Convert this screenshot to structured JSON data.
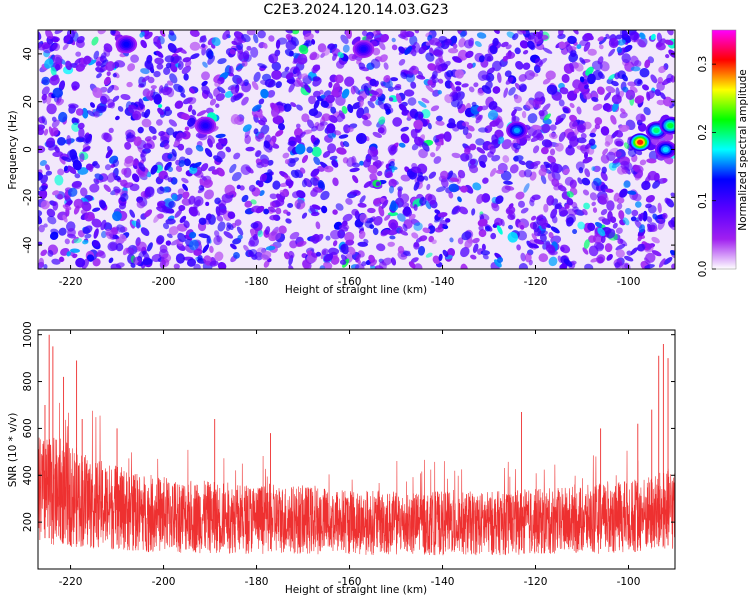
{
  "title": "C2E3.2024.120.14.03.G23",
  "chart_data": [
    {
      "type": "heatmap",
      "xlabel": "Height of straight line (km)",
      "ylabel": "Frequency (Hz)",
      "xlim": [
        -227,
        -90
      ],
      "ylim": [
        -50,
        50
      ],
      "x_ticks": [
        -220,
        -200,
        -180,
        -160,
        -140,
        -120,
        -100
      ],
      "y_ticks": [
        -40,
        -20,
        0,
        20,
        40
      ],
      "colorbar": {
        "label": "Normalized spectral amplitude",
        "range": [
          0.0,
          0.35
        ],
        "ticks": [
          0.0,
          0.1,
          0.2,
          0.3
        ],
        "colormap": [
          "#ffffff",
          "#a020f0",
          "#5a00ff",
          "#0000ff",
          "#00ffff",
          "#00ff00",
          "#ffff00",
          "#ff0000",
          "#ff00ff"
        ]
      },
      "background_level": 0.06,
      "hotspots": [
        {
          "x": -124,
          "y": 8,
          "value": 0.16
        },
        {
          "x": -97.5,
          "y": 3,
          "value": 0.3
        },
        {
          "x": -94,
          "y": 8,
          "value": 0.2
        },
        {
          "x": -92,
          "y": 0,
          "value": 0.17
        },
        {
          "x": -91,
          "y": 10,
          "value": 0.21
        },
        {
          "x": -208,
          "y": 44,
          "value": 0.13
        },
        {
          "x": -191,
          "y": 10,
          "value": 0.12
        },
        {
          "x": -157,
          "y": 42,
          "value": 0.12
        }
      ]
    },
    {
      "type": "line",
      "xlabel": "Height of straight line (km)",
      "ylabel": "SNR (10 * v/v)",
      "xlim": [
        -227,
        -90
      ],
      "ylim": [
        0,
        1020
      ],
      "x_ticks": [
        -220,
        -200,
        -180,
        -160,
        -140,
        -120,
        -100
      ],
      "y_ticks": [
        200,
        400,
        600,
        800,
        1000
      ],
      "color": "#ee3030",
      "profile": [
        {
          "x": -227,
          "y": 330
        },
        {
          "x": -222,
          "y": 330
        },
        {
          "x": -215,
          "y": 280
        },
        {
          "x": -205,
          "y": 240
        },
        {
          "x": -190,
          "y": 220
        },
        {
          "x": -170,
          "y": 210
        },
        {
          "x": -150,
          "y": 195
        },
        {
          "x": -130,
          "y": 195
        },
        {
          "x": -115,
          "y": 205
        },
        {
          "x": -105,
          "y": 215
        },
        {
          "x": -95,
          "y": 235
        },
        {
          "x": -90,
          "y": 260
        }
      ],
      "spikes": [
        {
          "x": -225.5,
          "y": 700
        },
        {
          "x": -224.6,
          "y": 1000
        },
        {
          "x": -223.8,
          "y": 950
        },
        {
          "x": -221.5,
          "y": 820
        },
        {
          "x": -218.7,
          "y": 890
        },
        {
          "x": -217.5,
          "y": 640
        },
        {
          "x": -210,
          "y": 600
        },
        {
          "x": -189,
          "y": 640
        },
        {
          "x": -177,
          "y": 580
        },
        {
          "x": -123,
          "y": 670
        },
        {
          "x": -106,
          "y": 600
        },
        {
          "x": -98,
          "y": 620
        },
        {
          "x": -95,
          "y": 680
        },
        {
          "x": -93.5,
          "y": 910
        },
        {
          "x": -92.5,
          "y": 960
        },
        {
          "x": -91.5,
          "y": 900
        }
      ]
    }
  ]
}
